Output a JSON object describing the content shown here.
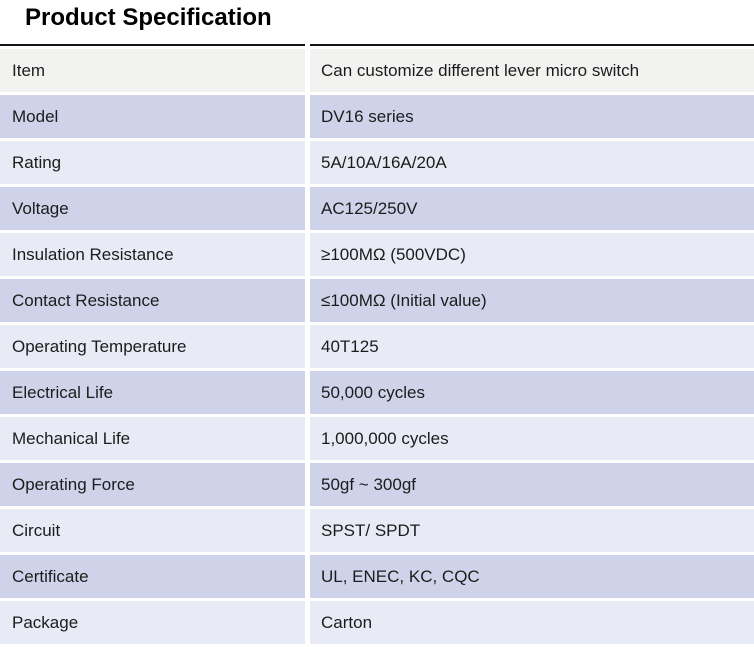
{
  "page": {
    "title": "Product Specification"
  },
  "table": {
    "rows": [
      {
        "label": "Item",
        "value": "Can customize different lever micro switch"
      },
      {
        "label": "Model",
        "value": "DV16 series"
      },
      {
        "label": "Rating",
        "value": "5A/10A/16A/20A"
      },
      {
        "label": "Voltage",
        "value": "AC125/250V"
      },
      {
        "label": "Insulation Resistance",
        "value": "≥100MΩ (500VDC)"
      },
      {
        "label": "Contact Resistance",
        "value": "≤100MΩ (Initial value)"
      },
      {
        "label": "Operating Temperature",
        "value": "40T125"
      },
      {
        "label": "Electrical Life",
        "value": "50,000 cycles"
      },
      {
        "label": "Mechanical Life",
        "value": "1,000,000 cycles"
      },
      {
        "label": "Operating Force",
        "value": "50gf ~ 300gf"
      },
      {
        "label": "Circuit",
        "value": "SPST/ SPDT"
      },
      {
        "label": "Certificate",
        "value": "UL, ENEC, KC, CQC"
      },
      {
        "label": "Package",
        "value": "Carton"
      }
    ]
  },
  "colors": {
    "row_gray": "#f2f2f1",
    "row_dark": "#ced3e9",
    "row_light": "#e8eaf5",
    "border": "#141414",
    "text": "#1c1c1c"
  }
}
